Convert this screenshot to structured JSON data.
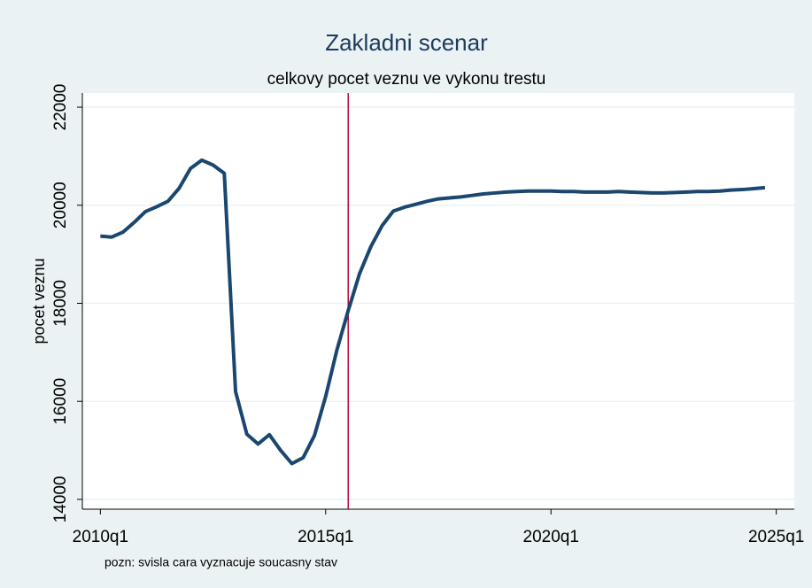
{
  "chart_data": {
    "type": "line",
    "title": "Zakladni scenar",
    "subtitle": "celkovy pocet veznu ve vykonu trestu",
    "y_label": "pocet veznu",
    "note": "pozn: svisla cara vyznacuje soucasny stav",
    "x": [
      2010,
      2010.25,
      2010.5,
      2010.75,
      2011,
      2011.25,
      2011.5,
      2011.75,
      2012,
      2012.25,
      2012.5,
      2012.75,
      2013,
      2013.25,
      2013.5,
      2013.75,
      2014,
      2014.25,
      2014.5,
      2014.75,
      2015,
      2015.25,
      2015.5,
      2015.75,
      2016,
      2016.25,
      2016.5,
      2016.75,
      2017,
      2017.25,
      2017.5,
      2017.75,
      2018,
      2018.25,
      2018.5,
      2018.75,
      2019,
      2019.25,
      2019.5,
      2019.75,
      2020,
      2020.25,
      2020.5,
      2020.75,
      2021,
      2021.25,
      2021.5,
      2021.75,
      2022,
      2022.25,
      2022.5,
      2022.75,
      2023,
      2023.25,
      2023.5,
      2023.75,
      2024,
      2024.25,
      2024.5,
      2024.75
    ],
    "values": [
      19370,
      19350,
      19450,
      19650,
      19870,
      19970,
      20080,
      20350,
      20750,
      20920,
      20820,
      20650,
      16200,
      15330,
      15130,
      15320,
      15000,
      14730,
      14850,
      15300,
      16100,
      17050,
      17850,
      18600,
      19150,
      19580,
      19880,
      19960,
      20020,
      20080,
      20130,
      20150,
      20170,
      20200,
      20230,
      20250,
      20270,
      20280,
      20290,
      20290,
      20290,
      20280,
      20280,
      20270,
      20270,
      20270,
      20280,
      20270,
      20260,
      20250,
      20250,
      20260,
      20270,
      20280,
      20280,
      20290,
      20310,
      20320,
      20340,
      20360
    ],
    "color": "#1a476f",
    "vline": {
      "value": 2015.5,
      "color": "#c10534"
    },
    "xlim": [
      2009.6,
      2025.4
    ],
    "xticks": [
      {
        "value": 2010,
        "label": "2010q1"
      },
      {
        "value": 2015,
        "label": "2015q1"
      },
      {
        "value": 2020,
        "label": "2020q1"
      },
      {
        "value": 2025,
        "label": "2025q1"
      }
    ],
    "ylim": [
      13800,
      22290
    ],
    "yticks": [
      14000,
      16000,
      18000,
      20000,
      22000
    ],
    "grid": true
  }
}
